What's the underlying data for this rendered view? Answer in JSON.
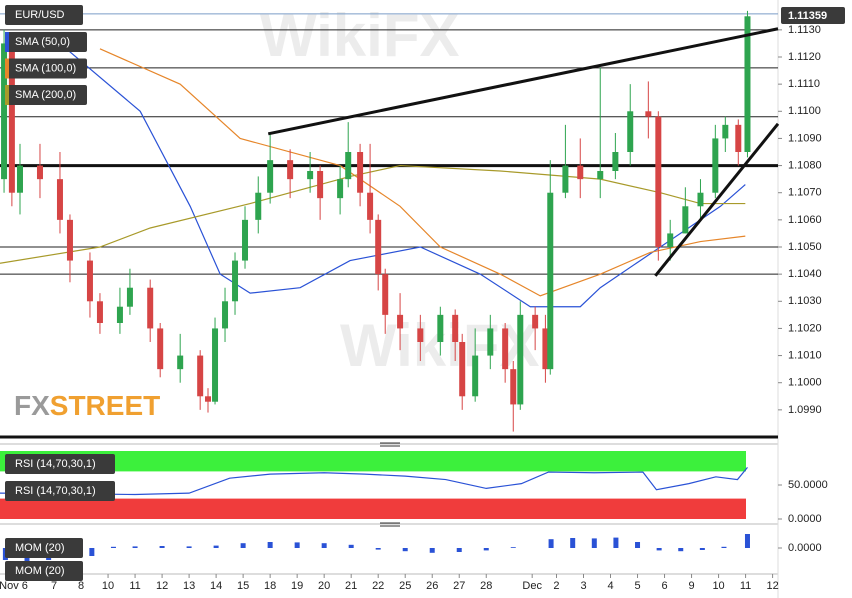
{
  "chart_data": [
    {
      "type": "candlestick",
      "title": "EUR/USD",
      "x": [
        -0.85,
        -0.56,
        -0.26,
        0.48,
        1.22,
        1.59,
        2.33,
        2.7,
        3.44,
        3.81,
        4.56,
        4.93,
        5.67,
        6.41,
        6.7,
        6.96,
        7.33,
        7.7,
        8.07,
        8.56,
        9,
        9.74,
        10.48,
        10.85,
        11.59,
        11.89,
        12.33,
        12.7,
        13,
        13.26,
        13.81,
        14.56,
        15.3,
        15.85,
        16.11,
        16.59,
        17.15,
        17.7,
        18,
        18.26,
        18.81,
        19.19,
        19.37,
        19.93,
        20.48,
        21.22,
        21.78,
        22.33,
        23,
        23.37,
        23.81,
        24.37,
        24.93,
        25.48,
        25.85,
        26.33,
        26.67
      ],
      "open": [
        1.1075,
        1.1125,
        1.107,
        1.108,
        1.1075,
        1.106,
        1.1045,
        1.103,
        1.1022,
        1.1028,
        1.1035,
        1.102,
        1.1005,
        1.101,
        1.0995,
        1.0993,
        1.102,
        1.103,
        1.1045,
        1.106,
        1.107,
        1.1082,
        1.1075,
        1.1078,
        1.1068,
        1.1075,
        1.1085,
        1.107,
        1.106,
        1.104,
        1.1025,
        1.102,
        1.1015,
        1.1025,
        1.1015,
        1.0995,
        1.101,
        1.102,
        1.1005,
        1.0992,
        1.1025,
        1.102,
        1.1005,
        1.107,
        1.108,
        1.1075,
        1.1078,
        1.1085,
        1.11,
        1.1098,
        1.105,
        1.1055,
        1.1065,
        1.107,
        1.109,
        1.1095,
        1.1085
      ],
      "high": [
        1.113,
        1.1128,
        1.1088,
        1.1088,
        1.1085,
        1.1062,
        1.1048,
        1.1033,
        1.1035,
        1.1042,
        1.1038,
        1.1022,
        1.1018,
        1.1012,
        1.0998,
        1.1024,
        1.1035,
        1.1048,
        1.1065,
        1.1076,
        1.1092,
        1.1086,
        1.1085,
        1.108,
        1.108,
        1.1096,
        1.1088,
        1.1088,
        1.1062,
        1.1042,
        1.1033,
        1.1025,
        1.1028,
        1.1027,
        1.1018,
        1.102,
        1.1025,
        1.1022,
        1.1008,
        1.103,
        1.1028,
        1.1025,
        1.1082,
        1.1095,
        1.109,
        1.1116,
        1.1092,
        1.111,
        1.1111,
        1.11,
        1.106,
        1.1072,
        1.1075,
        1.1095,
        1.1098,
        1.1097,
        1.1137
      ],
      "low": [
        1.107,
        1.1065,
        1.1062,
        1.1068,
        1.1055,
        1.1037,
        1.1024,
        1.1018,
        1.1018,
        1.1025,
        1.1015,
        1.1002,
        1.1,
        1.099,
        1.0989,
        1.0992,
        1.1015,
        1.1025,
        1.1042,
        1.1055,
        1.1066,
        1.1068,
        1.107,
        1.106,
        1.1062,
        1.1072,
        1.1065,
        1.1055,
        1.1034,
        1.1018,
        1.1012,
        1.1008,
        1.101,
        1.1008,
        1.099,
        1.0993,
        1.1005,
        1.1,
        1.0982,
        1.099,
        1.1012,
        1.1,
        1.1003,
        1.1068,
        1.1068,
        1.1068,
        1.1075,
        1.108,
        1.109,
        1.1045,
        1.1045,
        1.1055,
        1.106,
        1.1068,
        1.1085,
        1.108,
        1.1083
      ],
      "close": [
        1.1125,
        1.107,
        1.108,
        1.1075,
        1.106,
        1.1045,
        1.103,
        1.1022,
        1.1028,
        1.1035,
        1.102,
        1.1005,
        1.101,
        1.0995,
        1.0993,
        1.102,
        1.103,
        1.1045,
        1.106,
        1.107,
        1.1082,
        1.1075,
        1.1078,
        1.1068,
        1.1075,
        1.1085,
        1.107,
        1.106,
        1.104,
        1.1025,
        1.102,
        1.1015,
        1.1025,
        1.1015,
        1.0995,
        1.101,
        1.102,
        1.1005,
        1.0992,
        1.1025,
        1.102,
        1.1005,
        1.107,
        1.108,
        1.1075,
        1.1078,
        1.1085,
        1.11,
        1.1098,
        1.105,
        1.1055,
        1.1065,
        1.107,
        1.109,
        1.1095,
        1.1085,
        1.1135
      ],
      "up_color": "#2ea44f",
      "down_color": "#d64545",
      "series": [
        {
          "name": "SMA (50,0)",
          "color": "#2a52d6",
          "x": [
            1.22,
            4.19,
            6.04,
            7.15,
            8.26,
            10.11,
            11.96,
            14.56,
            16.78,
            18.63,
            20.48,
            21.22,
            22.7,
            24.19,
            25.67,
            26.59
          ],
          "values": [
            1.1125,
            1.11,
            1.1065,
            1.104,
            1.1033,
            1.1035,
            1.1045,
            1.105,
            1.104,
            1.1028,
            1.1028,
            1.1035,
            1.1045,
            1.1055,
            1.1065,
            1.1073
          ]
        },
        {
          "name": "SMA (100,0)",
          "color": "#e6862a",
          "x": [
            2.7,
            5.67,
            7.89,
            11.59,
            13.81,
            15.3,
            17.52,
            19,
            21.22,
            23.07,
            24.93,
            26.59
          ],
          "values": [
            1.1123,
            1.111,
            1.109,
            1.108,
            1.1065,
            1.105,
            1.104,
            1.1032,
            1.104,
            1.1048,
            1.1052,
            1.1054
          ]
        },
        {
          "name": "SMA (200,0)",
          "color": "#a89a2a",
          "x": [
            -1,
            2.7,
            4.56,
            8.26,
            11.96,
            13.81,
            17.52,
            21.22,
            23.44,
            24.93,
            26.59
          ],
          "values": [
            1.1044,
            1.105,
            1.1057,
            1.1066,
            1.1076,
            1.108,
            1.1078,
            1.1075,
            1.107,
            1.1066,
            1.1066
          ]
        }
      ],
      "xlim": [
        -1,
        27.8
      ],
      "ylim": [
        1.098,
        1.1141
      ],
      "yticks": [
        {
          "value": 1.099,
          "label": "1.0990"
        },
        {
          "value": 1.1,
          "label": "1.1000"
        },
        {
          "value": 1.101,
          "label": "1.1010"
        },
        {
          "value": 1.102,
          "label": "1.1020"
        },
        {
          "value": 1.103,
          "label": "1.1030"
        },
        {
          "value": 1.104,
          "label": "1.1040"
        },
        {
          "value": 1.105,
          "label": "1.1050"
        },
        {
          "value": 1.106,
          "label": "1.1060"
        },
        {
          "value": 1.107,
          "label": "1.1070"
        },
        {
          "value": 1.108,
          "label": "1.1080"
        },
        {
          "value": 1.109,
          "label": "1.1090"
        },
        {
          "value": 1.11,
          "label": "1.1100"
        },
        {
          "value": 1.111,
          "label": "1.1110"
        },
        {
          "value": 1.112,
          "label": "1.1120"
        },
        {
          "value": 1.113,
          "label": "1.1130"
        }
      ],
      "xticks": [
        {
          "value": -0.5,
          "label": "Nov 6"
        },
        {
          "value": 1,
          "label": "7"
        },
        {
          "value": 2,
          "label": "8"
        },
        {
          "value": 3,
          "label": "10"
        },
        {
          "value": 4,
          "label": "11"
        },
        {
          "value": 5,
          "label": "12"
        },
        {
          "value": 6,
          "label": "13"
        },
        {
          "value": 7,
          "label": "14"
        },
        {
          "value": 8,
          "label": "15"
        },
        {
          "value": 9,
          "label": "18"
        },
        {
          "value": 10,
          "label": "19"
        },
        {
          "value": 11,
          "label": "20"
        },
        {
          "value": 12,
          "label": "21"
        },
        {
          "value": 13,
          "label": "22"
        },
        {
          "value": 14,
          "label": "25"
        },
        {
          "value": 15,
          "label": "26"
        },
        {
          "value": 16,
          "label": "27"
        },
        {
          "value": 17,
          "label": "28"
        },
        {
          "value": 18.7,
          "label": "Dec"
        },
        {
          "value": 19.6,
          "label": "2"
        },
        {
          "value": 20.6,
          "label": "3"
        },
        {
          "value": 21.6,
          "label": "4"
        },
        {
          "value": 22.6,
          "label": "5"
        },
        {
          "value": 23.6,
          "label": "6"
        },
        {
          "value": 24.6,
          "label": "9"
        },
        {
          "value": 25.6,
          "label": "10"
        },
        {
          "value": 26.6,
          "label": "11"
        },
        {
          "value": 27.6,
          "label": "12"
        }
      ],
      "last_price": {
        "value": 1.11359,
        "label": "1.11359"
      },
      "levels": [
        1.113,
        1.1116,
        1.1098,
        1.105,
        1.104
      ],
      "key_levels": [
        1.108,
        1.098
      ],
      "trendlines": [
        {
          "x": [
            8.93,
            27.8
          ],
          "y": [
            1.10917,
            1.11304
          ]
        },
        {
          "x": [
            23.26,
            27.8
          ],
          "y": [
            1.10394,
            1.10954
          ]
        }
      ],
      "watermark": "WikiFX",
      "logo": [
        "FX",
        "STREET"
      ]
    },
    {
      "type": "line",
      "title": "RSI (14,70,30,1)",
      "color": "#2a52d6",
      "x": [
        -1,
        2,
        4,
        6,
        7.5,
        9,
        11,
        12.5,
        14,
        15.5,
        17,
        18.3,
        19.3,
        21,
        22.8,
        23.3,
        24.5,
        25.5,
        26.3,
        26.67
      ],
      "values": [
        38,
        37,
        36,
        38,
        60,
        66,
        68,
        66,
        63,
        58,
        45,
        52,
        69,
        68,
        69,
        43,
        52,
        62,
        58,
        76
      ],
      "upper": 70,
      "lower": 30,
      "upper_color": "#3cf03c",
      "lower_color": "#f03c3c",
      "ylim": [
        0,
        100
      ],
      "yticks": [
        {
          "value": 50,
          "label": "50.0000"
        },
        {
          "value": 0,
          "label": "0.0000"
        }
      ]
    },
    {
      "type": "bar",
      "title": "MOM (20)",
      "color": "#2a52d6",
      "x": [
        -0.8,
        0,
        0.8,
        1.6,
        2.4,
        3.2,
        4,
        5,
        6,
        7,
        8,
        9,
        10,
        11,
        12,
        13,
        14,
        15,
        16,
        17,
        18,
        19.4,
        20.2,
        21,
        21.8,
        22.6,
        23.4,
        24.2,
        25,
        25.8,
        26.67
      ],
      "values": [
        -0.003,
        -0.0035,
        -0.003,
        -0.0025,
        -0.002,
        0.0003,
        0.0004,
        0.0005,
        0.0004,
        0.0006,
        0.0012,
        0.0015,
        0.0014,
        0.0012,
        0.0008,
        -0.0004,
        -0.0008,
        -0.0012,
        -0.001,
        -0.0006,
        0.0002,
        0.0022,
        0.0025,
        0.0024,
        0.0026,
        0.0015,
        -0.0006,
        -0.0008,
        -0.0005,
        0.0003,
        0.0035
      ],
      "ylim": [
        -0.004,
        0.004
      ],
      "yticks": [
        {
          "value": 0,
          "label": "0.0000"
        }
      ]
    }
  ]
}
